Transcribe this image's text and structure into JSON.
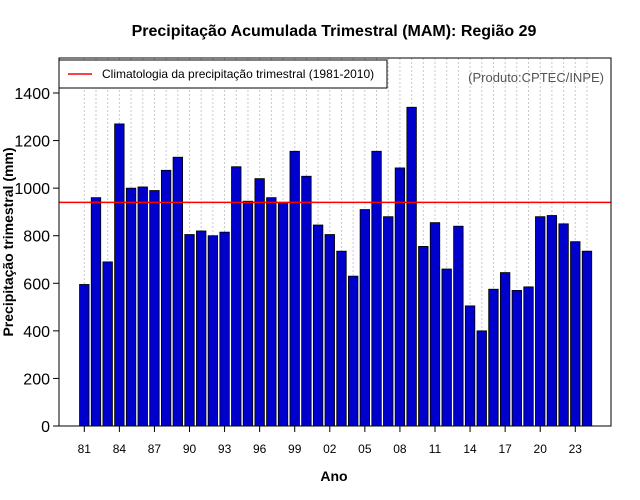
{
  "chart_data": {
    "type": "bar",
    "title": "Precipitação Acumulada Trimestral (MAM): Região 29",
    "xlabel": "Ano",
    "ylabel": "Precipitação trimestral (mm)",
    "product_note": "(Produto:CPTEC/INPE)",
    "legend_label": "Climatologia da precipitação trimestral (1981-2010)",
    "legend_position": "top-left",
    "grid": true,
    "years": [
      1981,
      1982,
      1983,
      1984,
      1985,
      1986,
      1987,
      1988,
      1989,
      1990,
      1991,
      1992,
      1993,
      1994,
      1995,
      1996,
      1997,
      1998,
      1999,
      2000,
      2001,
      2002,
      2003,
      2004,
      2005,
      2006,
      2007,
      2008,
      2009,
      2010,
      2011,
      2012,
      2013,
      2014,
      2015,
      2016,
      2017,
      2018,
      2019,
      2020,
      2021,
      2022,
      2023,
      2024
    ],
    "values": [
      595,
      960,
      690,
      1270,
      1000,
      1005,
      990,
      1075,
      1130,
      805,
      820,
      800,
      815,
      1090,
      945,
      1040,
      960,
      940,
      1155,
      1050,
      845,
      805,
      735,
      630,
      910,
      1155,
      880,
      1085,
      1340,
      755,
      855,
      660,
      840,
      505,
      400,
      575,
      645,
      570,
      585,
      880,
      885,
      850,
      775,
      735
    ],
    "tick_labels": [
      "81",
      "84",
      "87",
      "90",
      "93",
      "96",
      "99",
      "02",
      "05",
      "08",
      "11",
      "14",
      "17",
      "20",
      "23"
    ],
    "tick_years": [
      1981,
      1984,
      1987,
      1990,
      1993,
      1996,
      1999,
      2002,
      2005,
      2008,
      2011,
      2014,
      2017,
      2020,
      2023
    ],
    "yticks": [
      0,
      200,
      400,
      600,
      800,
      1000,
      1200,
      1400
    ],
    "ytick_labels": [
      "0",
      "200",
      "400",
      "600",
      "800",
      "1000",
      "1200",
      "1400"
    ],
    "ylim": [
      0,
      1550
    ],
    "climatology": 940,
    "colors": {
      "bar_fill": "#0000cc",
      "bar_edge": "#000000",
      "climatology_line": "#ff0000",
      "grid": "#c8c8c8"
    }
  }
}
